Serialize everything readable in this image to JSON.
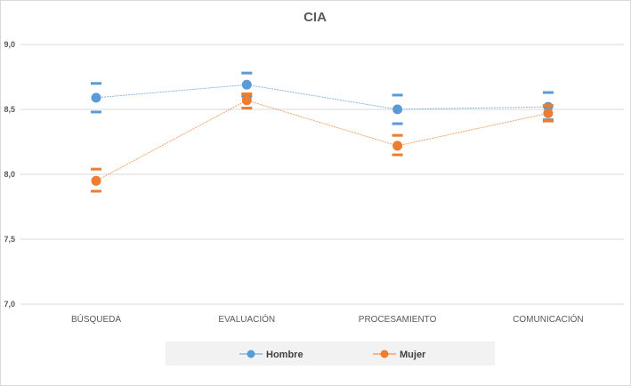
{
  "chart_data": {
    "type": "line",
    "title": "CIA",
    "xlabel": "",
    "ylabel": "",
    "ylim": [
      7.0,
      9.0
    ],
    "yticks": [
      "7,0",
      "7,5",
      "8,0",
      "8,5",
      "9,0"
    ],
    "ytick_values": [
      7.0,
      7.5,
      8.0,
      8.5,
      9.0
    ],
    "categories": [
      "BÚSQUEDA",
      "EVALUACIÓN",
      "PROCESAMIENTO",
      "COMUNICACIÓN"
    ],
    "grid": true,
    "legend_position": "bottom",
    "series": [
      {
        "name": "Hombre",
        "color": "#5b9bd5",
        "values": [
          8.59,
          8.69,
          8.5,
          8.52
        ],
        "upper": [
          8.7,
          8.78,
          8.61,
          8.63
        ],
        "lower": [
          8.48,
          8.6,
          8.39,
          8.42
        ]
      },
      {
        "name": "Mujer",
        "color": "#ed7d31",
        "values": [
          7.95,
          8.57,
          8.22,
          8.47
        ],
        "upper": [
          8.04,
          8.62,
          8.3,
          8.53
        ],
        "lower": [
          7.87,
          8.51,
          8.15,
          8.41
        ]
      }
    ]
  }
}
